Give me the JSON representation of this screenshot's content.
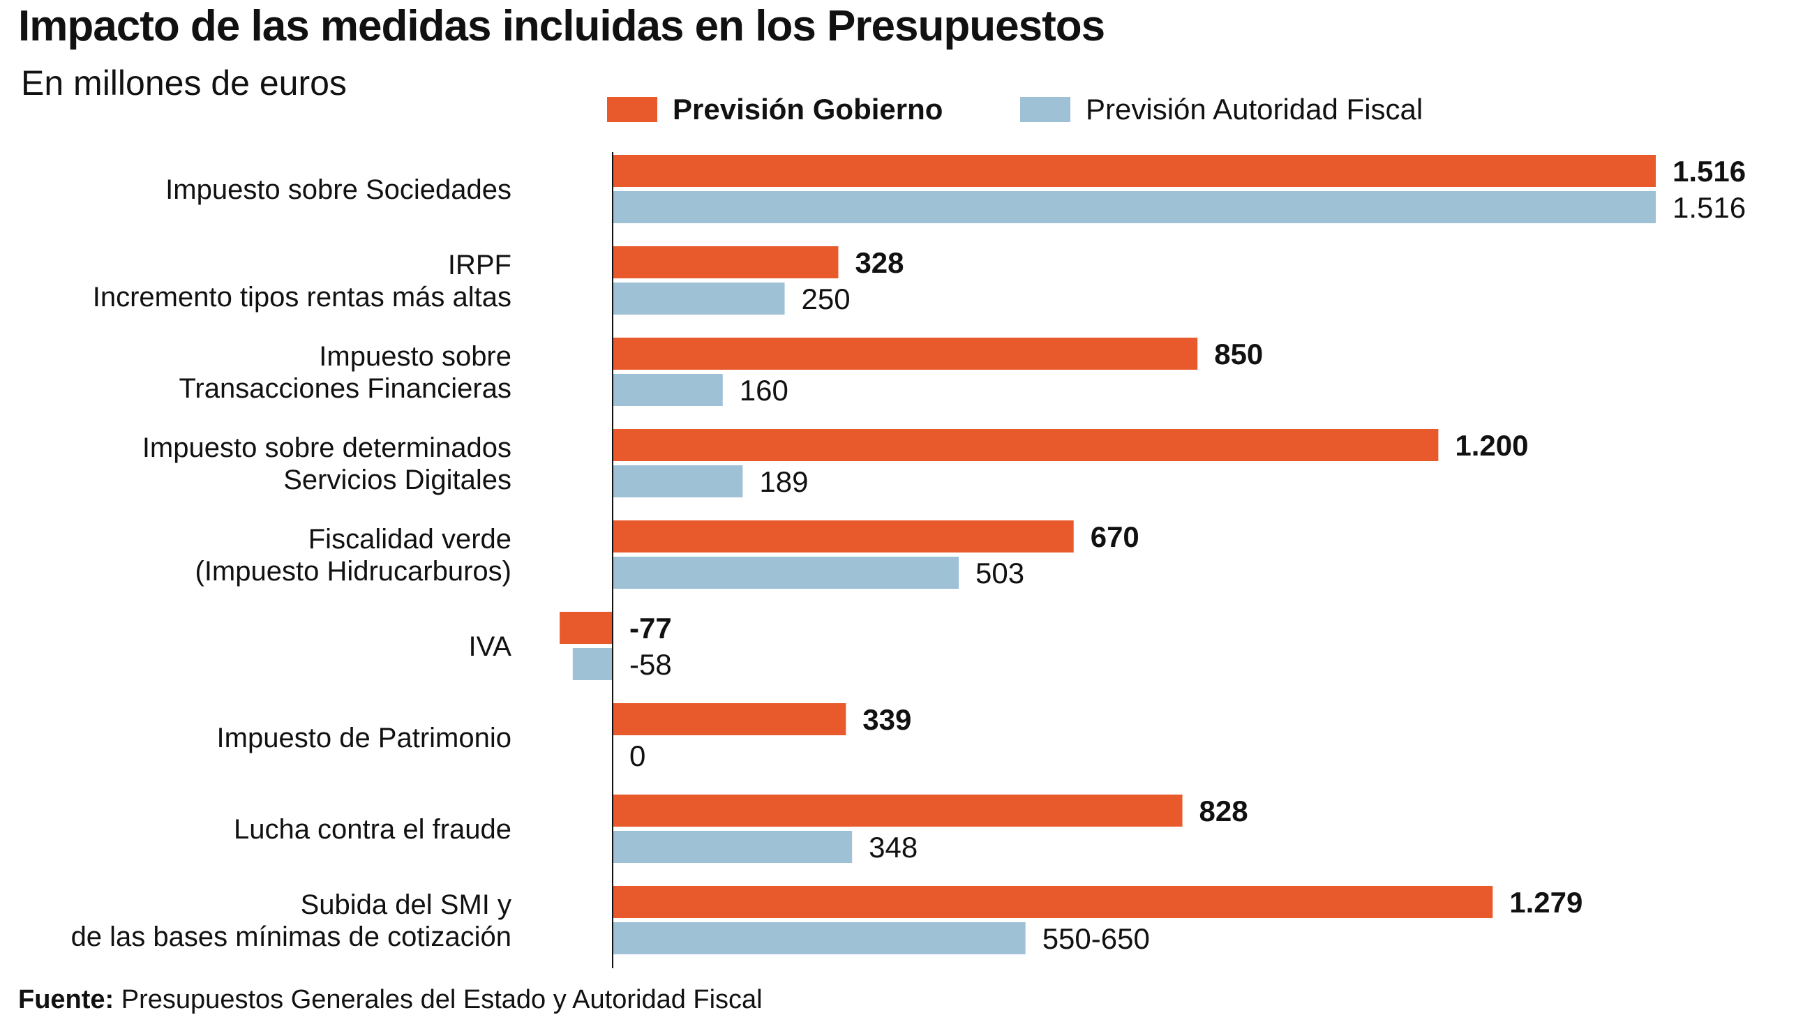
{
  "title": "Impacto de las medidas incluidas en los Presupuestos",
  "subtitle": "En millones de euros",
  "legend": {
    "gov": "Previsión Gobierno",
    "fiscal": "Previsión Autoridad Fiscal"
  },
  "colors": {
    "gov": "#e85a2b",
    "fiscal": "#9fc1d6",
    "axis": "#111111"
  },
  "source": {
    "label": "Fuente:",
    "text": "Presupuestos Generales del Estado y Autoridad Fiscal"
  },
  "chart_data": {
    "type": "bar",
    "orientation": "horizontal",
    "categories": [
      [
        "Impuesto sobre Sociedades"
      ],
      [
        "IRPF",
        "Incremento tipos rentas más altas"
      ],
      [
        "Impuesto sobre",
        "Transacciones Financieras"
      ],
      [
        "Impuesto sobre determinados",
        "Servicios Digitales"
      ],
      [
        "Fiscalidad verde",
        "(Impuesto Hidrucarburos)"
      ],
      [
        "IVA"
      ],
      [
        "Impuesto de Patrimonio"
      ],
      [
        "Lucha contra el fraude"
      ],
      [
        "Subida del SMI y",
        "de las bases mínimas de cotización"
      ]
    ],
    "series": [
      {
        "name": "Previsión Gobierno",
        "values": [
          1516,
          328,
          850,
          1200,
          670,
          -77,
          339,
          828,
          1279
        ],
        "labels": [
          "1.516",
          "328",
          "850",
          "1.200",
          "670",
          "-77",
          "339",
          "828",
          "1.279"
        ]
      },
      {
        "name": "Previsión Autoridad Fiscal",
        "values": [
          1516,
          250,
          160,
          189,
          503,
          -58,
          0,
          348,
          600
        ],
        "labels": [
          "1.516",
          "250",
          "160",
          "189",
          "503",
          "-58",
          "0",
          "348",
          "550-650"
        ]
      }
    ],
    "xlim": [
      -77,
      1516
    ],
    "grid": false,
    "legend_position": "top"
  }
}
